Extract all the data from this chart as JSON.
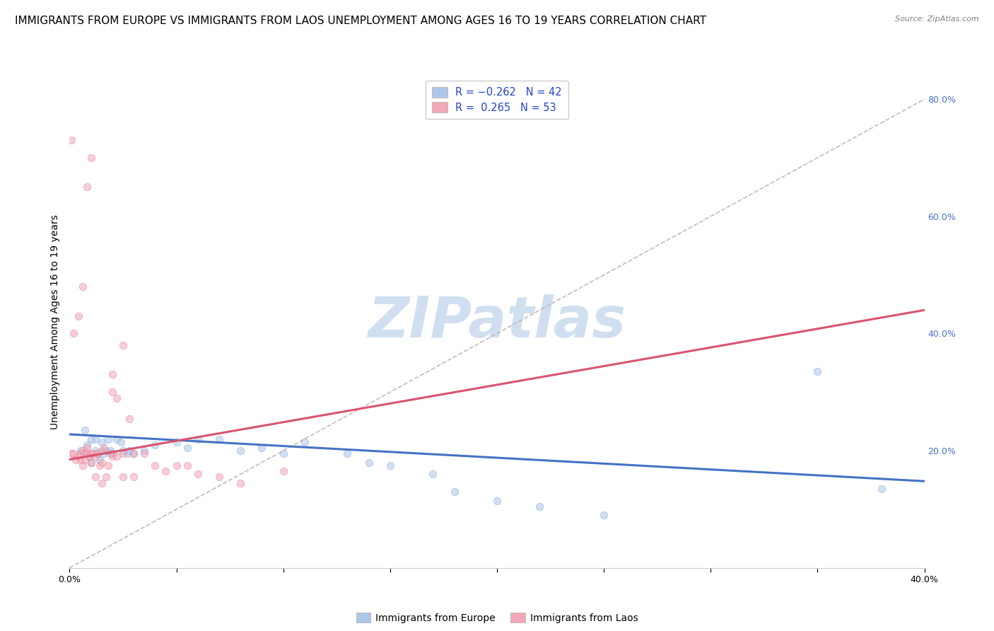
{
  "title": "IMMIGRANTS FROM EUROPE VS IMMIGRANTS FROM LAOS UNEMPLOYMENT AMONG AGES 16 TO 19 YEARS CORRELATION CHART",
  "source": "Source: ZipAtlas.com",
  "ylabel": "Unemployment Among Ages 16 to 19 years",
  "xlim": [
    0.0,
    0.4
  ],
  "ylim": [
    0.0,
    0.84
  ],
  "yticks_right": [
    0.2,
    0.4,
    0.6,
    0.8
  ],
  "ytick_labels_right": [
    "20.0%",
    "40.0%",
    "60.0%",
    "80.0%"
  ],
  "xticks": [
    0.0,
    0.05,
    0.1,
    0.15,
    0.2,
    0.25,
    0.3,
    0.35,
    0.4
  ],
  "xtick_labels": [
    "0.0%",
    "",
    "",
    "",
    "",
    "",
    "",
    "",
    "40.0%"
  ],
  "legend_europe_label": "R = -0.262   N = 42",
  "legend_laos_label": "R =  0.265   N = 53",
  "legend_europe_color": "#aec6e8",
  "legend_laos_color": "#f4a7b9",
  "europe_scatter_color": "#aec6e8",
  "laos_scatter_color": "#f4a7b9",
  "europe_line_color": "#4472c4",
  "laos_line_color": "#d9546e",
  "diag_line_color": "#c8b8b8",
  "watermark_text": "ZIPatlas",
  "watermark_color": "#d0dff0",
  "europe_scatter_x": [
    0.005,
    0.007,
    0.008,
    0.009,
    0.01,
    0.01,
    0.012,
    0.012,
    0.013,
    0.014,
    0.015,
    0.016,
    0.017,
    0.018,
    0.019,
    0.02,
    0.022,
    0.024,
    0.025,
    0.027,
    0.028,
    0.03,
    0.035,
    0.04,
    0.05,
    0.055,
    0.06,
    0.07,
    0.08,
    0.09,
    0.1,
    0.11,
    0.13,
    0.14,
    0.15,
    0.17,
    0.18,
    0.2,
    0.22,
    0.25,
    0.35,
    0.38
  ],
  "europe_scatter_y": [
    0.2,
    0.235,
    0.21,
    0.19,
    0.22,
    0.18,
    0.2,
    0.22,
    0.195,
    0.185,
    0.215,
    0.195,
    0.2,
    0.22,
    0.2,
    0.195,
    0.22,
    0.215,
    0.2,
    0.195,
    0.2,
    0.195,
    0.2,
    0.21,
    0.215,
    0.205,
    0.22,
    0.22,
    0.2,
    0.205,
    0.195,
    0.215,
    0.195,
    0.18,
    0.175,
    0.16,
    0.13,
    0.115,
    0.105,
    0.09,
    0.335,
    0.135
  ],
  "laos_scatter_x": [
    0.001,
    0.002,
    0.003,
    0.004,
    0.005,
    0.005,
    0.006,
    0.006,
    0.007,
    0.007,
    0.008,
    0.008,
    0.009,
    0.01,
    0.01,
    0.011,
    0.012,
    0.013,
    0.014,
    0.015,
    0.015,
    0.016,
    0.017,
    0.018,
    0.019,
    0.02,
    0.02,
    0.022,
    0.022,
    0.025,
    0.025,
    0.028,
    0.03,
    0.035,
    0.04,
    0.045,
    0.05,
    0.055,
    0.06,
    0.07,
    0.08,
    0.1,
    0.02,
    0.025,
    0.03,
    0.015,
    0.012,
    0.01,
    0.008,
    0.006,
    0.004,
    0.002,
    0.001
  ],
  "laos_scatter_y": [
    0.195,
    0.195,
    0.185,
    0.19,
    0.185,
    0.195,
    0.175,
    0.2,
    0.185,
    0.195,
    0.205,
    0.195,
    0.19,
    0.18,
    0.195,
    0.195,
    0.19,
    0.195,
    0.175,
    0.18,
    0.2,
    0.205,
    0.155,
    0.175,
    0.195,
    0.3,
    0.19,
    0.29,
    0.19,
    0.38,
    0.195,
    0.255,
    0.195,
    0.195,
    0.175,
    0.165,
    0.175,
    0.175,
    0.16,
    0.155,
    0.145,
    0.165,
    0.33,
    0.155,
    0.155,
    0.145,
    0.155,
    0.7,
    0.65,
    0.48,
    0.43,
    0.4,
    0.73
  ],
  "europe_line_x": [
    0.0,
    0.4
  ],
  "europe_line_y": [
    0.228,
    0.148
  ],
  "laos_line_x": [
    0.0,
    0.4
  ],
  "laos_line_y": [
    0.185,
    0.44
  ],
  "diag_line_x": [
    0.0,
    0.4
  ],
  "diag_line_y": [
    0.0,
    0.8
  ],
  "background_color": "#ffffff",
  "grid_color": "#dddddd",
  "title_fontsize": 11,
  "axis_label_fontsize": 10,
  "tick_fontsize": 9,
  "marker_size": 55,
  "marker_alpha": 0.55,
  "source_text": "Source: ZipAtlas.com"
}
